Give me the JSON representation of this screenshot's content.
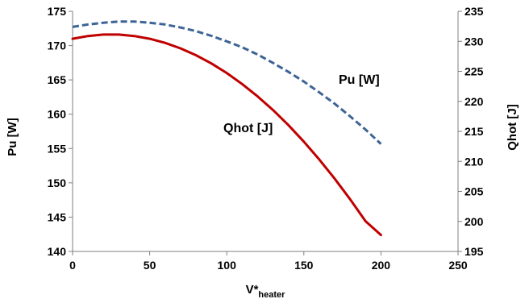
{
  "chart_data": {
    "type": "line",
    "xlabel": "V*",
    "xlabel_sub": "heater",
    "ylabel": "Pu [W]",
    "y2label": "Qhot [J]",
    "xlim": [
      0,
      250
    ],
    "ylim": [
      140,
      175
    ],
    "y2lim": [
      195,
      235
    ],
    "x_ticks": [
      "0",
      "50",
      "100",
      "150",
      "200",
      "250"
    ],
    "y_ticks": [
      "140",
      "145",
      "150",
      "155",
      "160",
      "165",
      "170",
      "175"
    ],
    "y2_ticks": [
      "195",
      "200",
      "205",
      "210",
      "215",
      "220",
      "225",
      "230",
      "235"
    ],
    "grid": false,
    "series": [
      {
        "name": "Pu [W]",
        "axis": "right",
        "style": "dashed",
        "color": "#3c6496",
        "x": [
          0,
          10,
          20,
          30,
          40,
          50,
          60,
          70,
          80,
          90,
          100,
          110,
          120,
          130,
          140,
          150,
          160,
          170,
          180,
          190,
          200
        ],
        "y": [
          232.4,
          232.8,
          233.1,
          233.3,
          233.3,
          233.1,
          232.8,
          232.3,
          231.7,
          230.9,
          230.0,
          229.0,
          227.8,
          226.4,
          224.9,
          223.3,
          221.5,
          219.6,
          217.5,
          215.3,
          212.9
        ]
      },
      {
        "name": "Qhot [J]",
        "axis": "left",
        "style": "solid",
        "color": "#c00000",
        "x": [
          0,
          10,
          20,
          30,
          40,
          50,
          60,
          70,
          80,
          90,
          100,
          110,
          120,
          130,
          140,
          150,
          160,
          170,
          180,
          190,
          200
        ],
        "y": [
          171.0,
          171.4,
          171.6,
          171.6,
          171.4,
          171.0,
          170.4,
          169.6,
          168.6,
          167.4,
          166.0,
          164.4,
          162.6,
          160.6,
          158.4,
          156.0,
          153.4,
          150.6,
          147.6,
          144.4,
          142.4
        ]
      }
    ],
    "annotations": [
      {
        "text": "Pu [W]"
      },
      {
        "text": "Qhot [J]"
      }
    ]
  }
}
